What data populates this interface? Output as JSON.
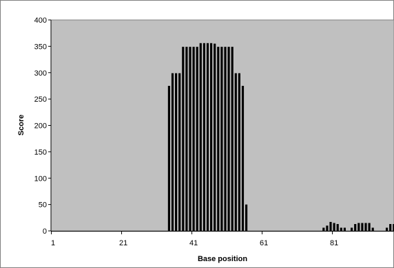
{
  "chart_data": {
    "type": "bar",
    "xlabel": "Base position",
    "ylabel": "Score",
    "ylim": [
      0,
      400
    ],
    "yticks": [
      0,
      50,
      100,
      150,
      200,
      250,
      300,
      350,
      400
    ],
    "xticks": [
      1,
      21,
      41,
      61,
      81
    ],
    "xlim": [
      1,
      100
    ],
    "grid": false,
    "legend": "none",
    "plot_background": "#c0c0c0",
    "bar_color": "#000000",
    "x": [
      34,
      35,
      36,
      37,
      38,
      39,
      40,
      41,
      42,
      43,
      44,
      45,
      46,
      47,
      48,
      49,
      50,
      51,
      52,
      53,
      54,
      55,
      56,
      78,
      79,
      80,
      81,
      82,
      83,
      84,
      86,
      87,
      88,
      89,
      90,
      91,
      92,
      96,
      97,
      98,
      99,
      100
    ],
    "values": [
      275,
      299,
      299,
      299,
      349,
      349,
      349,
      349,
      349,
      356,
      356,
      356,
      356,
      355,
      349,
      349,
      349,
      349,
      349,
      299,
      299,
      275,
      50,
      6,
      10,
      17,
      15,
      13,
      6,
      6,
      6,
      13,
      15,
      15,
      15,
      15,
      6,
      6,
      13,
      13,
      6,
      6
    ]
  }
}
